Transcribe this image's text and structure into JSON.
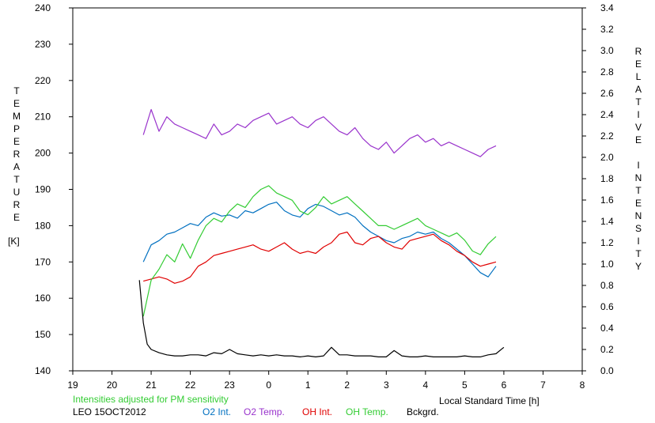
{
  "chart_data": {
    "type": "line",
    "left_axis": {
      "label_letters": [
        "T",
        "E",
        "M",
        "P",
        "E",
        "R",
        "A",
        "T",
        "U",
        "R",
        "E"
      ],
      "unit": "[K]",
      "ylim": [
        140,
        240
      ],
      "ticks": [
        "140",
        "150",
        "160",
        "170",
        "180",
        "190",
        "200",
        "210",
        "220",
        "230",
        "240"
      ]
    },
    "right_axis": {
      "label_letters": [
        "R",
        "E",
        "L",
        "A",
        "T",
        "I",
        "V",
        "E",
        "",
        "I",
        "N",
        "T",
        "E",
        "N",
        "S",
        "I",
        "T",
        "Y"
      ],
      "ylim": [
        0.0,
        3.4
      ],
      "ticks": [
        "0.0",
        "0.2",
        "0.4",
        "0.6",
        "0.8",
        "1.0",
        "1.2",
        "1.4",
        "1.6",
        "1.8",
        "2.0",
        "2.2",
        "2.4",
        "2.6",
        "2.8",
        "3.0",
        "3.2",
        "3.4"
      ]
    },
    "x_axis": {
      "label": "Local Standard Time [h]",
      "xlim": [
        19,
        32
      ],
      "ticks": [
        "19",
        "20",
        "21",
        "22",
        "23",
        "0",
        "1",
        "2",
        "3",
        "4",
        "5",
        "6",
        "7",
        "8"
      ]
    },
    "note": "Intensities adjusted for PM sensitivity",
    "station": "LEO 15OCT2012",
    "series": [
      {
        "name": "O2 Int.",
        "color": "#0070c0",
        "axis": "right",
        "x": [
          20.8,
          21.0,
          21.2,
          21.4,
          21.6,
          21.8,
          22.0,
          22.2,
          22.4,
          22.6,
          22.8,
          23.0,
          23.2,
          23.4,
          23.6,
          23.8,
          24.0,
          24.2,
          24.4,
          24.6,
          24.8,
          25.0,
          25.2,
          25.4,
          25.6,
          25.8,
          26.0,
          26.2,
          26.4,
          26.6,
          26.8,
          27.0,
          27.2,
          27.4,
          27.6,
          27.8,
          28.0,
          28.2,
          28.4,
          28.6,
          28.8,
          29.0,
          29.2,
          29.4,
          29.6,
          29.8
        ],
        "y": [
          1.02,
          1.18,
          1.22,
          1.28,
          1.3,
          1.34,
          1.38,
          1.36,
          1.44,
          1.48,
          1.45,
          1.46,
          1.43,
          1.5,
          1.48,
          1.52,
          1.56,
          1.58,
          1.5,
          1.46,
          1.44,
          1.52,
          1.56,
          1.54,
          1.5,
          1.46,
          1.48,
          1.44,
          1.36,
          1.3,
          1.26,
          1.22,
          1.2,
          1.24,
          1.26,
          1.3,
          1.28,
          1.3,
          1.24,
          1.2,
          1.14,
          1.08,
          1.0,
          0.92,
          0.88,
          0.98
        ]
      },
      {
        "name": "O2 Temp.",
        "color": "#9933cc",
        "axis": "left",
        "x": [
          20.8,
          21.0,
          21.2,
          21.4,
          21.6,
          21.8,
          22.0,
          22.2,
          22.4,
          22.6,
          22.8,
          23.0,
          23.2,
          23.4,
          23.6,
          23.8,
          24.0,
          24.2,
          24.4,
          24.6,
          24.8,
          25.0,
          25.2,
          25.4,
          25.6,
          25.8,
          26.0,
          26.2,
          26.4,
          26.6,
          26.8,
          27.0,
          27.2,
          27.4,
          27.6,
          27.8,
          28.0,
          28.2,
          28.4,
          28.6,
          28.8,
          29.0,
          29.2,
          29.4,
          29.6,
          29.8
        ],
        "y": [
          205,
          212,
          206,
          210,
          208,
          207,
          206,
          205,
          204,
          208,
          205,
          206,
          208,
          207,
          209,
          210,
          211,
          208,
          209,
          210,
          208,
          207,
          209,
          210,
          208,
          206,
          205,
          207,
          204,
          202,
          201,
          203,
          200,
          202,
          204,
          205,
          203,
          204,
          202,
          203,
          202,
          201,
          200,
          199,
          201,
          202
        ]
      },
      {
        "name": "OH Int.",
        "color": "#e00000",
        "axis": "right",
        "x": [
          20.8,
          21.0,
          21.2,
          21.4,
          21.6,
          21.8,
          22.0,
          22.2,
          22.4,
          22.6,
          22.8,
          23.0,
          23.2,
          23.4,
          23.6,
          23.8,
          24.0,
          24.2,
          24.4,
          24.6,
          24.8,
          25.0,
          25.2,
          25.4,
          25.6,
          25.8,
          26.0,
          26.2,
          26.4,
          26.6,
          26.8,
          27.0,
          27.2,
          27.4,
          27.6,
          27.8,
          28.0,
          28.2,
          28.4,
          28.6,
          28.8,
          29.0,
          29.2,
          29.4,
          29.6,
          29.8
        ],
        "y": [
          0.84,
          0.86,
          0.88,
          0.86,
          0.82,
          0.84,
          0.88,
          0.98,
          1.02,
          1.08,
          1.1,
          1.12,
          1.14,
          1.16,
          1.18,
          1.14,
          1.12,
          1.16,
          1.2,
          1.14,
          1.1,
          1.12,
          1.1,
          1.16,
          1.2,
          1.28,
          1.3,
          1.2,
          1.18,
          1.24,
          1.26,
          1.2,
          1.16,
          1.14,
          1.22,
          1.24,
          1.26,
          1.28,
          1.22,
          1.18,
          1.12,
          1.08,
          1.02,
          0.98,
          1.0,
          1.02
        ]
      },
      {
        "name": "OH Temp.",
        "color": "#33cc33",
        "axis": "left",
        "x": [
          20.8,
          21.0,
          21.2,
          21.4,
          21.6,
          21.8,
          22.0,
          22.2,
          22.4,
          22.6,
          22.8,
          23.0,
          23.2,
          23.4,
          23.6,
          23.8,
          24.0,
          24.2,
          24.4,
          24.6,
          24.8,
          25.0,
          25.2,
          25.4,
          25.6,
          25.8,
          26.0,
          26.2,
          26.4,
          26.6,
          26.8,
          27.0,
          27.2,
          27.4,
          27.6,
          27.8,
          28.0,
          28.2,
          28.4,
          28.6,
          28.8,
          29.0,
          29.2,
          29.4,
          29.6,
          29.8
        ],
        "y": [
          155,
          165,
          168,
          172,
          170,
          175,
          171,
          176,
          180,
          182,
          181,
          184,
          186,
          185,
          188,
          190,
          191,
          189,
          188,
          187,
          184,
          183,
          185,
          188,
          186,
          187,
          188,
          186,
          184,
          182,
          180,
          180,
          179,
          180,
          181,
          182,
          180,
          179,
          178,
          177,
          178,
          176,
          173,
          172,
          175,
          177
        ]
      },
      {
        "name": "Bckgrd.",
        "color": "#000000",
        "axis": "right",
        "x": [
          20.7,
          20.8,
          20.9,
          21.0,
          21.2,
          21.4,
          21.6,
          21.8,
          22.0,
          22.2,
          22.4,
          22.6,
          22.8,
          23.0,
          23.2,
          23.4,
          23.6,
          23.8,
          24.0,
          24.2,
          24.4,
          24.6,
          24.8,
          25.0,
          25.2,
          25.4,
          25.6,
          25.8,
          26.0,
          26.2,
          26.4,
          26.6,
          26.8,
          27.0,
          27.2,
          27.4,
          27.6,
          27.8,
          28.0,
          28.2,
          28.4,
          28.6,
          28.8,
          29.0,
          29.2,
          29.4,
          29.6,
          29.8,
          30.0
        ],
        "y": [
          0.85,
          0.45,
          0.25,
          0.2,
          0.17,
          0.15,
          0.14,
          0.14,
          0.15,
          0.15,
          0.14,
          0.17,
          0.16,
          0.2,
          0.16,
          0.15,
          0.14,
          0.15,
          0.14,
          0.15,
          0.14,
          0.14,
          0.13,
          0.14,
          0.13,
          0.14,
          0.22,
          0.15,
          0.15,
          0.14,
          0.14,
          0.14,
          0.13,
          0.13,
          0.19,
          0.14,
          0.13,
          0.13,
          0.14,
          0.13,
          0.13,
          0.13,
          0.13,
          0.14,
          0.13,
          0.13,
          0.15,
          0.16,
          0.22
        ]
      }
    ]
  }
}
